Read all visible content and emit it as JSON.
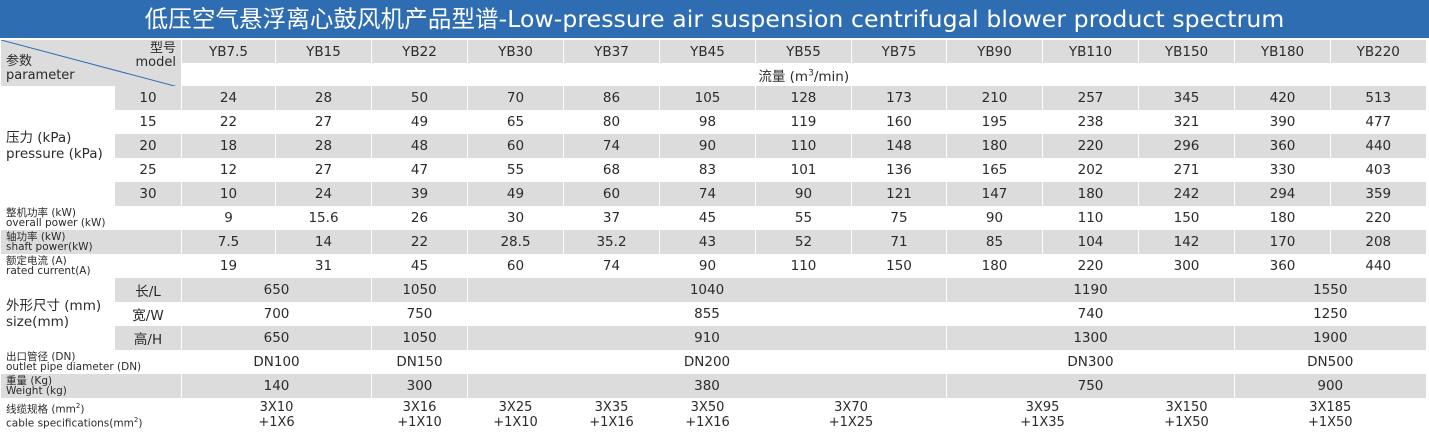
{
  "title": "低压空气悬浮离心鼓风机产品型谱-Low-pressure air suspension centrifugal blower product spectrum",
  "header": {
    "param_cn": "参数",
    "param_en": "parameter",
    "model_cn": "型号",
    "model_en": "model",
    "models": [
      "YB7.5",
      "YB15",
      "YB22",
      "YB30",
      "YB37",
      "YB45",
      "YB55",
      "YB75",
      "YB90",
      "YB110",
      "YB150",
      "YB180",
      "YB220"
    ],
    "flow_unit_prefix": "流量 (m",
    "flow_unit_sup": "3",
    "flow_unit_suffix": "/min)"
  },
  "pressure": {
    "label_cn": "压力 (kPa)",
    "label_en": "pressure (kPa)",
    "rows": [
      {
        "kpa": "10",
        "values": [
          "24",
          "28",
          "50",
          "70",
          "86",
          "105",
          "128",
          "173",
          "210",
          "257",
          "345",
          "420",
          "513"
        ]
      },
      {
        "kpa": "15",
        "values": [
          "22",
          "27",
          "49",
          "65",
          "80",
          "98",
          "119",
          "160",
          "195",
          "238",
          "321",
          "390",
          "477"
        ]
      },
      {
        "kpa": "20",
        "values": [
          "18",
          "28",
          "48",
          "60",
          "74",
          "90",
          "110",
          "148",
          "180",
          "220",
          "296",
          "360",
          "440"
        ]
      },
      {
        "kpa": "25",
        "values": [
          "12",
          "27",
          "47",
          "55",
          "68",
          "83",
          "101",
          "136",
          "165",
          "202",
          "271",
          "330",
          "403"
        ]
      },
      {
        "kpa": "30",
        "values": [
          "10",
          "24",
          "39",
          "49",
          "60",
          "74",
          "90",
          "121",
          "147",
          "180",
          "242",
          "294",
          "359"
        ]
      }
    ]
  },
  "overall_power": {
    "label_cn": "整机功率 (kW)",
    "label_en": "overall power (kW)",
    "values": [
      "9",
      "15.6",
      "26",
      "30",
      "37",
      "45",
      "55",
      "75",
      "90",
      "110",
      "150",
      "180",
      "220"
    ]
  },
  "shaft_power": {
    "label_cn": "轴功率 (kW)",
    "label_en": "shaft power(kW)",
    "values": [
      "7.5",
      "14",
      "22",
      "28.5",
      "35.2",
      "43",
      "52",
      "71",
      "85",
      "104",
      "142",
      "170",
      "208"
    ]
  },
  "rated_current": {
    "label_cn": "额定电流 (A)",
    "label_en": "rated current(A)",
    "values": [
      "19",
      "31",
      "45",
      "60",
      "74",
      "90",
      "110",
      "150",
      "180",
      "220",
      "300",
      "360",
      "440"
    ]
  },
  "size": {
    "label_cn": "外形尺寸 (mm)",
    "label_en": "size(mm)",
    "length_label": "长/L",
    "width_label": "宽/W",
    "height_label": "高/H",
    "length": [
      "650",
      "1050",
      "1040",
      "1190",
      "1550"
    ],
    "width": [
      "700",
      "750",
      "855",
      "740",
      "1250"
    ],
    "height": [
      "650",
      "1050",
      "910",
      "1300",
      "1900"
    ]
  },
  "outlet": {
    "label_cn": "出口管径 (DN)",
    "label_en": "outlet pipe diameter (DN)",
    "values": [
      "DN100",
      "DN150",
      "DN200",
      "DN300",
      "DN500"
    ]
  },
  "weight": {
    "label_cn": "重量 (Kg)",
    "label_en": "Weight (kg)",
    "values": [
      "140",
      "300",
      "380",
      "750",
      "900"
    ]
  },
  "cable": {
    "label_cn_prefix": "线缆规格 (mm",
    "label_en_prefix": "cable specifications(mm",
    "sup": "2",
    "label_suffix": ")",
    "values": [
      {
        "l1": "3X10",
        "l2": "+1X6"
      },
      {
        "l1": "3X16",
        "l2": "+1X10"
      },
      {
        "l1": "3X25",
        "l2": "+1X10"
      },
      {
        "l1": "3X35",
        "l2": "+1X16"
      },
      {
        "l1": "3X50",
        "l2": "+1X16"
      },
      {
        "l1": "3X70",
        "l2": "+1X25"
      },
      {
        "l1": "3X95",
        "l2": "+1X35"
      },
      {
        "l1": "3X150",
        "l2": "+1X50"
      },
      {
        "l1": "3X185",
        "l2": "+1X50"
      }
    ]
  }
}
